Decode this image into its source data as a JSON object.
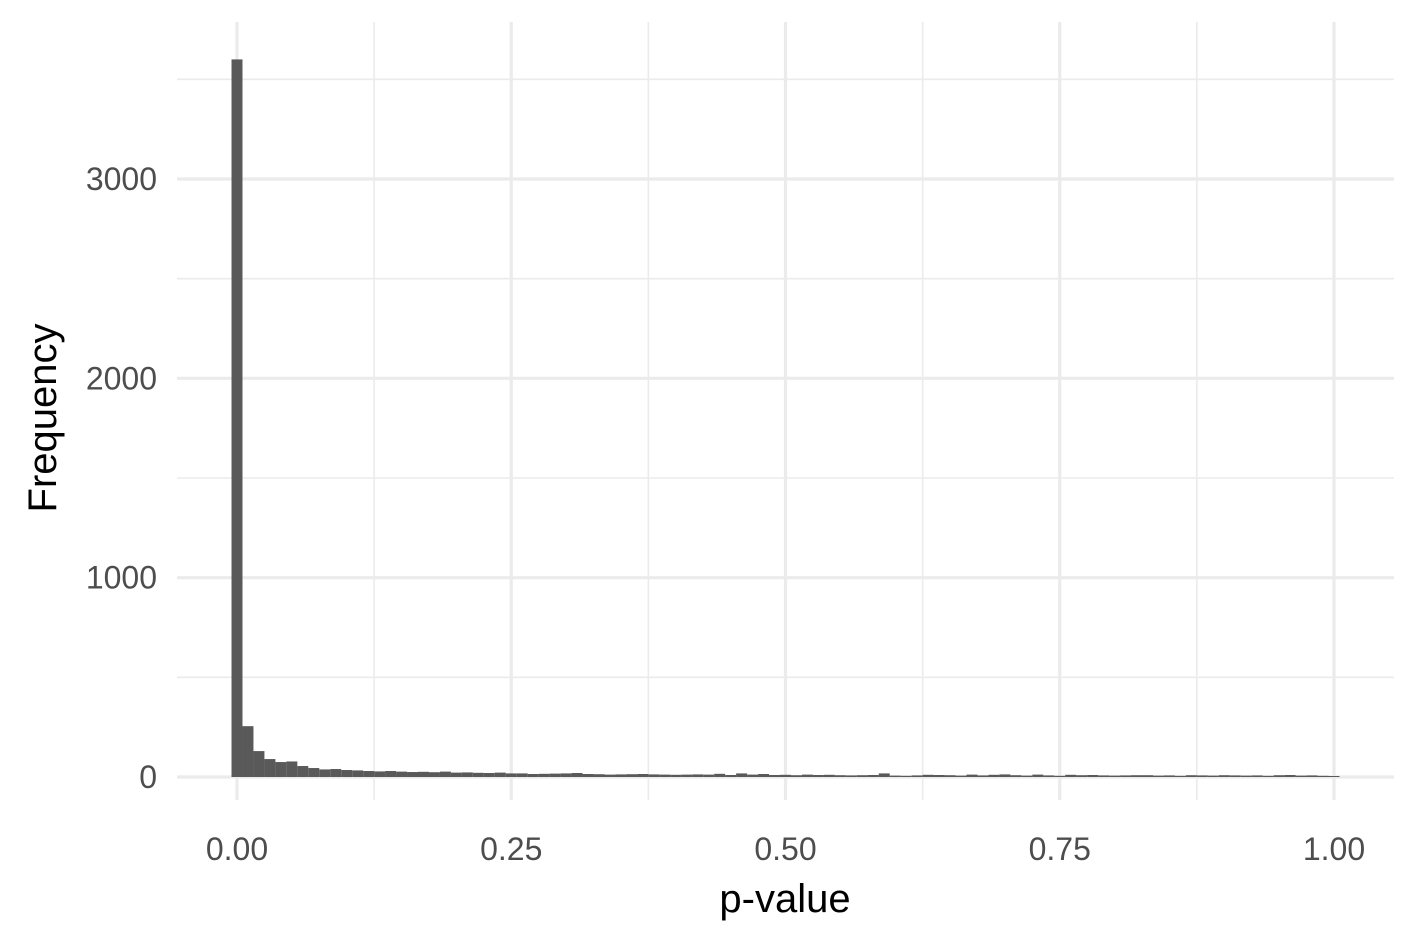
{
  "chart_data": {
    "type": "bar",
    "subtype": "histogram",
    "title": "",
    "xlabel": "p-value",
    "ylabel": "Frequency",
    "xlim": [
      -0.05,
      1.05
    ],
    "ylim": [
      -80,
      3700
    ],
    "x_ticks": [
      0.0,
      0.25,
      0.5,
      0.75,
      1.0
    ],
    "x_tick_labels": [
      "0.00",
      "0.25",
      "0.50",
      "0.75",
      "1.00"
    ],
    "y_ticks": [
      0,
      1000,
      2000,
      3000
    ],
    "y_tick_labels": [
      "0",
      "1000",
      "2000",
      "3000"
    ],
    "grid": true,
    "bin_width": 0.01,
    "bin_centers_start": 0.0,
    "bar_color": "#595959",
    "grid_color": "#ebebeb",
    "values": [
      3600,
      255,
      130,
      90,
      75,
      78,
      55,
      45,
      38,
      40,
      35,
      33,
      30,
      28,
      30,
      27,
      25,
      26,
      24,
      27,
      22,
      23,
      21,
      20,
      22,
      18,
      18,
      15,
      16,
      17,
      18,
      20,
      15,
      14,
      12,
      13,
      14,
      15,
      13,
      12,
      11,
      12,
      13,
      12,
      16,
      10,
      18,
      12,
      15,
      10,
      11,
      9,
      12,
      10,
      11,
      9,
      8,
      9,
      10,
      18,
      7,
      6,
      8,
      11,
      10,
      9,
      7,
      12,
      8,
      11,
      13,
      9,
      7,
      12,
      8,
      6,
      11,
      9,
      10,
      8,
      7,
      8,
      9,
      9,
      7,
      8,
      6,
      9,
      8,
      7,
      9,
      8,
      7,
      8,
      6,
      9,
      10,
      7,
      8,
      6,
      5
    ]
  }
}
